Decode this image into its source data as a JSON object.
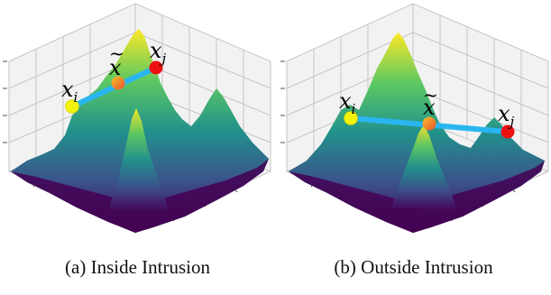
{
  "panels": [
    {
      "id": "a",
      "caption": "(a) Inside Intrusion",
      "points": {
        "xi": {
          "label": "x",
          "sub": "i",
          "color": "#f2f20a"
        },
        "xt": {
          "label": "x",
          "accent": "~",
          "gradient": [
            "#f7c22b",
            "#e8502a"
          ]
        },
        "xj": {
          "label": "x",
          "sub": "j",
          "color": "#ee1111"
        }
      },
      "line_color": "#29b6f0"
    },
    {
      "id": "b",
      "caption": "(b) Outside Intrusion",
      "points": {
        "xi": {
          "label": "x",
          "sub": "i",
          "color": "#f2f20a"
        },
        "xt": {
          "label": "x",
          "accent": "~",
          "gradient": [
            "#f7c22b",
            "#e8502a"
          ]
        },
        "xj": {
          "label": "x",
          "sub": "j",
          "color": "#ee1111"
        }
      },
      "line_color": "#29b6f0"
    }
  ],
  "colormap": [
    "#440154",
    "#3b528b",
    "#21918c",
    "#5ec962",
    "#fde725"
  ]
}
